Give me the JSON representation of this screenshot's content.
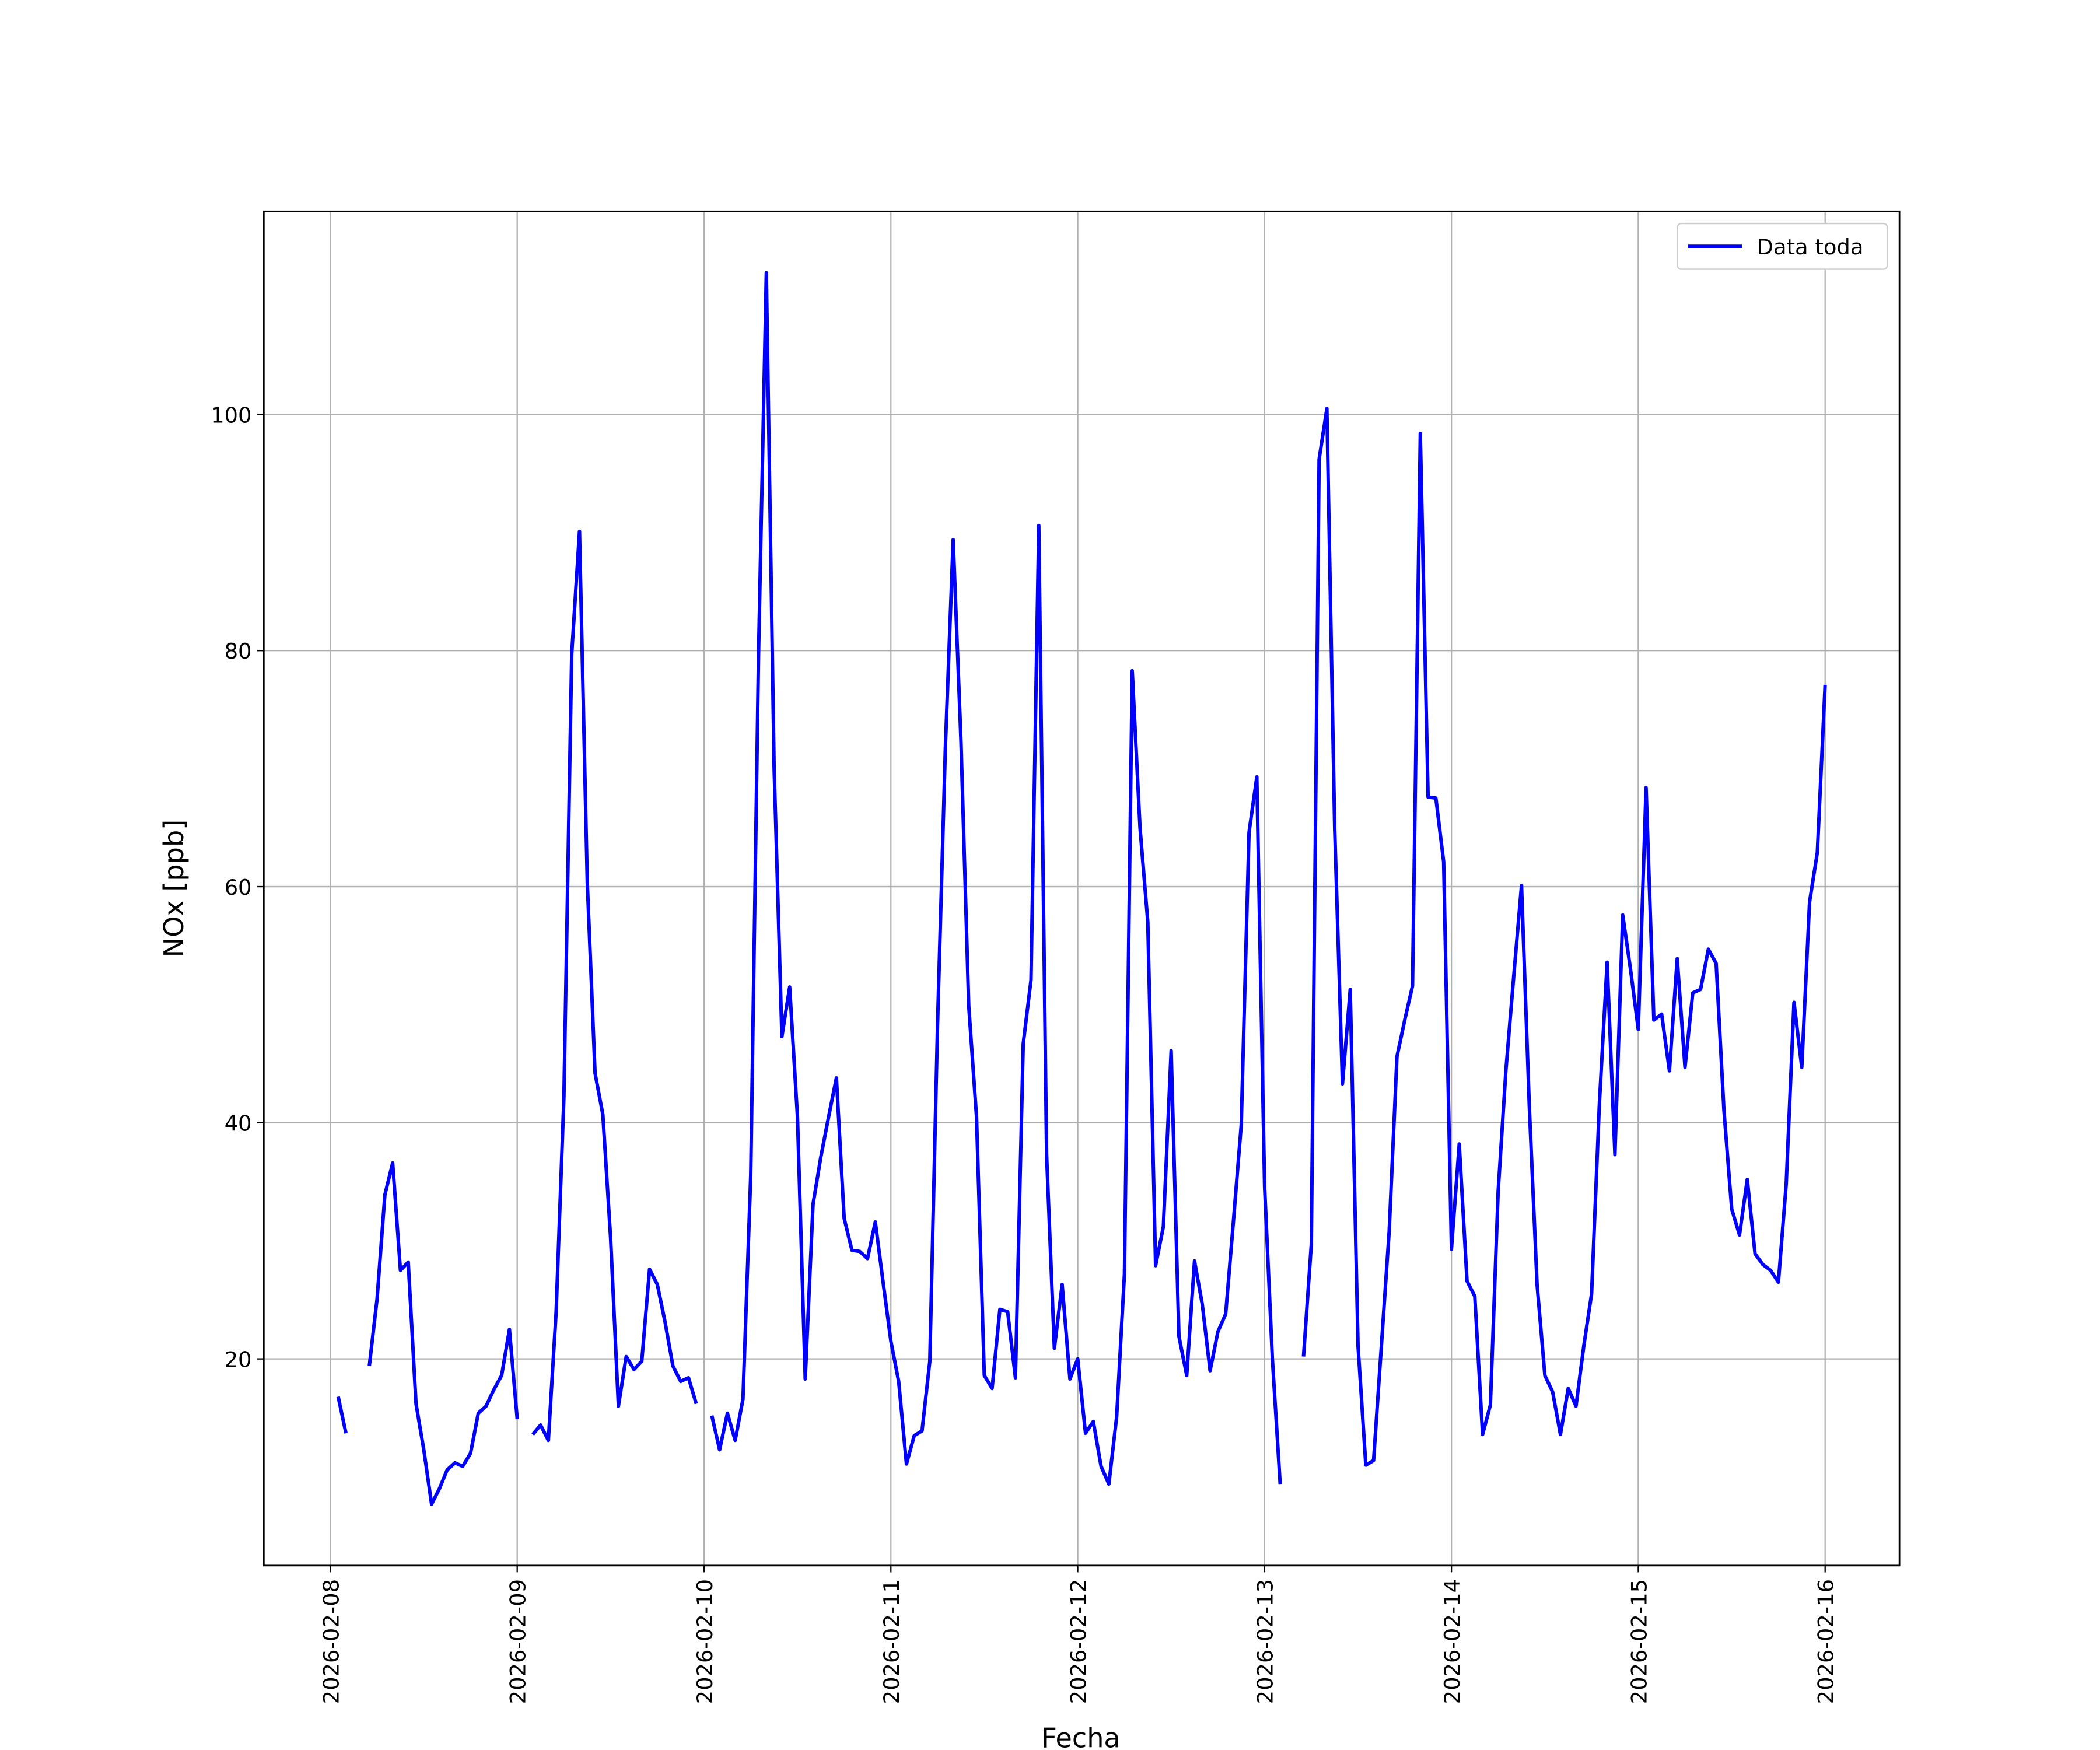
{
  "chart_data": {
    "type": "line",
    "xlabel": "Fecha",
    "ylabel": "NOx [ppb]",
    "x": [
      "2026-02-08 01:00",
      "2026-02-08 02:00",
      "2026-02-08 03:00",
      "2026-02-08 04:00",
      "2026-02-08 05:00",
      "2026-02-08 06:00",
      "2026-02-08 07:00",
      "2026-02-08 08:00",
      "2026-02-08 09:00",
      "2026-02-08 10:00",
      "2026-02-08 11:00",
      "2026-02-08 12:00",
      "2026-02-08 13:00",
      "2026-02-08 14:00",
      "2026-02-08 15:00",
      "2026-02-08 16:00",
      "2026-02-08 17:00",
      "2026-02-08 18:00",
      "2026-02-08 19:00",
      "2026-02-08 20:00",
      "2026-02-08 21:00",
      "2026-02-08 22:00",
      "2026-02-08 23:00",
      "2026-02-09 00:00",
      "2026-02-09 01:00",
      "2026-02-09 02:00",
      "2026-02-09 03:00",
      "2026-02-09 04:00",
      "2026-02-09 05:00",
      "2026-02-09 06:00",
      "2026-02-09 07:00",
      "2026-02-09 08:00",
      "2026-02-09 09:00",
      "2026-02-09 10:00",
      "2026-02-09 11:00",
      "2026-02-09 12:00",
      "2026-02-09 13:00",
      "2026-02-09 14:00",
      "2026-02-09 15:00",
      "2026-02-09 16:00",
      "2026-02-09 17:00",
      "2026-02-09 18:00",
      "2026-02-09 19:00",
      "2026-02-09 20:00",
      "2026-02-09 21:00",
      "2026-02-09 22:00",
      "2026-02-09 23:00",
      "2026-02-10 00:00",
      "2026-02-10 01:00",
      "2026-02-10 02:00",
      "2026-02-10 03:00",
      "2026-02-10 04:00",
      "2026-02-10 05:00",
      "2026-02-10 06:00",
      "2026-02-10 07:00",
      "2026-02-10 08:00",
      "2026-02-10 09:00",
      "2026-02-10 10:00",
      "2026-02-10 11:00",
      "2026-02-10 12:00",
      "2026-02-10 13:00",
      "2026-02-10 14:00",
      "2026-02-10 15:00",
      "2026-02-10 16:00",
      "2026-02-10 17:00",
      "2026-02-10 18:00",
      "2026-02-10 19:00",
      "2026-02-10 20:00",
      "2026-02-10 21:00",
      "2026-02-10 22:00",
      "2026-02-10 23:00",
      "2026-02-11 00:00",
      "2026-02-11 01:00",
      "2026-02-11 02:00",
      "2026-02-11 03:00",
      "2026-02-11 04:00",
      "2026-02-11 05:00",
      "2026-02-11 06:00",
      "2026-02-11 07:00",
      "2026-02-11 08:00",
      "2026-02-11 09:00",
      "2026-02-11 10:00",
      "2026-02-11 11:00",
      "2026-02-11 12:00",
      "2026-02-11 13:00",
      "2026-02-11 14:00",
      "2026-02-11 15:00",
      "2026-02-11 16:00",
      "2026-02-11 17:00",
      "2026-02-11 18:00",
      "2026-02-11 19:00",
      "2026-02-11 20:00",
      "2026-02-11 21:00",
      "2026-02-11 22:00",
      "2026-02-11 23:00",
      "2026-02-12 00:00",
      "2026-02-12 01:00",
      "2026-02-12 02:00",
      "2026-02-12 03:00",
      "2026-02-12 04:00",
      "2026-02-12 05:00",
      "2026-02-12 06:00",
      "2026-02-12 07:00",
      "2026-02-12 08:00",
      "2026-02-12 09:00",
      "2026-02-12 10:00",
      "2026-02-12 11:00",
      "2026-02-12 12:00",
      "2026-02-12 13:00",
      "2026-02-12 14:00",
      "2026-02-12 15:00",
      "2026-02-12 16:00",
      "2026-02-12 17:00",
      "2026-02-12 18:00",
      "2026-02-12 19:00",
      "2026-02-12 20:00",
      "2026-02-12 21:00",
      "2026-02-12 22:00",
      "2026-02-12 23:00",
      "2026-02-13 00:00",
      "2026-02-13 01:00",
      "2026-02-13 02:00",
      "2026-02-13 03:00",
      "2026-02-13 04:00",
      "2026-02-13 05:00",
      "2026-02-13 06:00",
      "2026-02-13 07:00",
      "2026-02-13 08:00",
      "2026-02-13 09:00",
      "2026-02-13 10:00",
      "2026-02-13 11:00",
      "2026-02-13 12:00",
      "2026-02-13 13:00",
      "2026-02-13 14:00",
      "2026-02-13 15:00",
      "2026-02-13 16:00",
      "2026-02-13 17:00",
      "2026-02-13 18:00",
      "2026-02-13 19:00",
      "2026-02-13 20:00",
      "2026-02-13 21:00",
      "2026-02-13 22:00",
      "2026-02-13 23:00",
      "2026-02-14 00:00",
      "2026-02-14 01:00",
      "2026-02-14 02:00",
      "2026-02-14 03:00",
      "2026-02-14 04:00",
      "2026-02-14 05:00",
      "2026-02-14 06:00",
      "2026-02-14 07:00",
      "2026-02-14 08:00",
      "2026-02-14 09:00",
      "2026-02-14 10:00",
      "2026-02-14 11:00",
      "2026-02-14 12:00",
      "2026-02-14 13:00",
      "2026-02-14 14:00",
      "2026-02-14 15:00",
      "2026-02-14 16:00",
      "2026-02-14 17:00",
      "2026-02-14 18:00",
      "2026-02-14 19:00",
      "2026-02-14 20:00",
      "2026-02-14 21:00",
      "2026-02-14 22:00",
      "2026-02-14 23:00",
      "2026-02-15 00:00",
      "2026-02-15 01:00",
      "2026-02-15 02:00",
      "2026-02-15 03:00",
      "2026-02-15 04:00",
      "2026-02-15 05:00",
      "2026-02-15 06:00",
      "2026-02-15 07:00",
      "2026-02-15 08:00",
      "2026-02-15 09:00",
      "2026-02-15 10:00",
      "2026-02-15 11:00",
      "2026-02-15 12:00",
      "2026-02-15 13:00",
      "2026-02-15 14:00",
      "2026-02-15 15:00",
      "2026-02-15 16:00",
      "2026-02-15 17:00",
      "2026-02-15 18:00",
      "2026-02-15 19:00",
      "2026-02-15 20:00",
      "2026-02-15 21:00",
      "2026-02-15 22:00",
      "2026-02-15 23:00",
      "2026-02-16 00:00"
    ],
    "series": [
      {
        "name": "Data toda",
        "color": "#0000ff",
        "values": [
          16.8,
          13.7,
          null,
          null,
          19.4,
          25.1,
          33.9,
          36.6,
          27.5,
          28.2,
          16.2,
          12.3,
          7.7,
          9.0,
          10.6,
          11.2,
          10.9,
          12.0,
          15.4,
          16.0,
          17.4,
          18.6,
          22.5,
          14.9,
          null,
          13.6,
          14.4,
          13.1,
          24.0,
          42.2,
          79.7,
          90.1,
          60.4,
          44.2,
          40.7,
          30.2,
          16.0,
          20.2,
          19.1,
          19.8,
          27.6,
          26.3,
          23.1,
          19.4,
          18.1,
          18.4,
          16.2,
          null,
          15.2,
          12.3,
          15.4,
          13.1,
          16.6,
          35.6,
          79.7,
          112.0,
          70.1,
          47.3,
          51.5,
          40.5,
          18.3,
          33.1,
          37.1,
          40.5,
          43.8,
          31.9,
          29.2,
          29.1,
          28.5,
          31.6,
          26.5,
          21.5,
          18.1,
          11.1,
          13.5,
          13.9,
          19.8,
          48.5,
          71.8,
          89.4,
          72.4,
          49.9,
          40.5,
          18.6,
          17.5,
          24.2,
          24.0,
          18.4,
          46.7,
          52.1,
          90.6,
          37.3,
          20.9,
          26.3,
          18.3,
          20.0,
          13.7,
          14.7,
          10.9,
          9.4,
          15.1,
          27.2,
          78.3,
          65.0,
          57.0,
          27.9,
          31.2,
          46.1,
          21.9,
          18.6,
          28.3,
          24.6,
          19.0,
          22.3,
          23.8,
          31.7,
          39.8,
          64.6,
          69.3,
          34.6,
          20.0,
          9.4,
          null,
          null,
          20.2,
          29.7,
          96.2,
          100.5,
          65.0,
          43.3,
          51.3,
          21.1,
          11.0,
          11.4,
          21.1,
          30.8,
          45.6,
          48.7,
          51.6,
          98.4,
          67.6,
          67.5,
          62.1,
          29.3,
          38.2,
          26.6,
          25.3,
          13.6,
          16.1,
          34.2,
          44.5,
          52.4,
          60.1,
          41.4,
          26.3,
          18.6,
          17.2,
          13.6,
          17.5,
          16.0,
          21.1,
          25.5,
          41.6,
          53.6,
          37.3,
          57.6,
          53.0,
          47.9,
          68.4,
          48.7,
          49.2,
          44.4,
          53.9,
          44.7,
          51.0,
          51.3,
          54.7,
          53.5,
          41.1,
          32.7,
          30.5,
          35.2,
          28.9,
          28.0,
          27.5,
          26.5,
          34.8,
          50.2,
          44.7,
          58.7,
          62.9,
          77.1
        ]
      }
    ],
    "xlim": [
      "2026-02-07 15:27",
      "2026-02-16 09:33"
    ],
    "xticks": [
      "2026-02-08",
      "2026-02-09",
      "2026-02-10",
      "2026-02-11",
      "2026-02-12",
      "2026-02-13",
      "2026-02-14",
      "2026-02-15",
      "2026-02-16"
    ],
    "ylim": [
      2.5,
      117.2
    ],
    "yticks": [
      20,
      40,
      60,
      80,
      100
    ],
    "grid": true,
    "legend": "upper right"
  }
}
